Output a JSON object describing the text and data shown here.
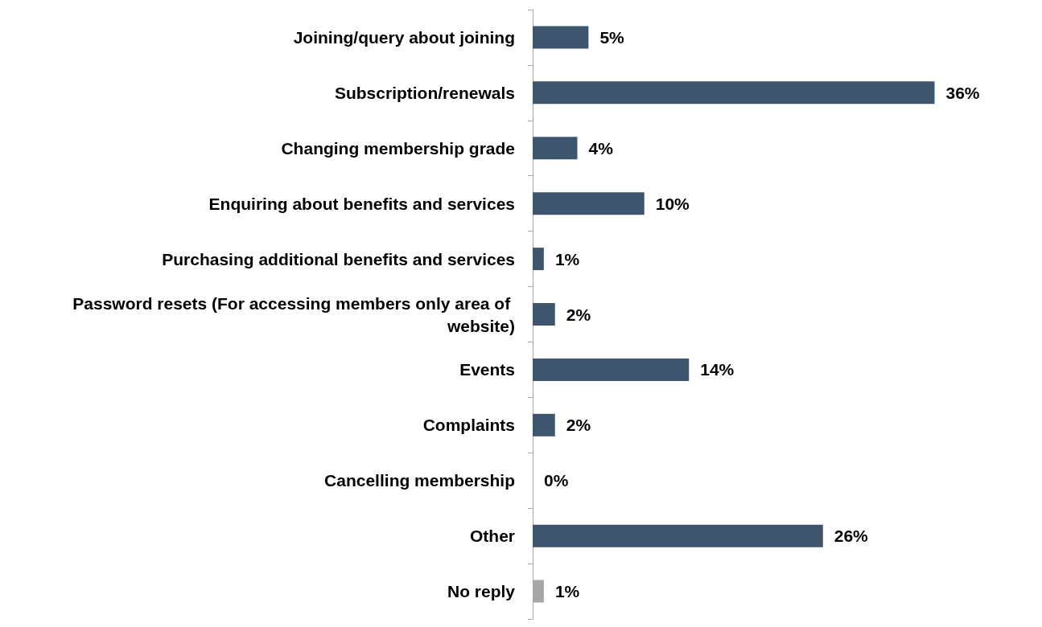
{
  "chart_data": {
    "type": "bar",
    "orientation": "horizontal",
    "categories": [
      "Joining/query about joining",
      "Subscription/renewals",
      "Changing membership grade",
      "Enquiring about benefits and services",
      "Purchasing additional benefits and services",
      "Password resets (For accessing members only area of website)",
      "Events",
      "Complaints",
      "Cancelling membership",
      "Other",
      "No reply"
    ],
    "values": [
      5,
      36,
      4,
      10,
      1,
      2,
      14,
      2,
      0,
      26,
      1
    ],
    "colors": [
      "#3d566e",
      "#3d566e",
      "#3d566e",
      "#3d566e",
      "#3d566e",
      "#3d566e",
      "#3d566e",
      "#3d566e",
      "#3d566e",
      "#3d566e",
      "#a6a6a6"
    ],
    "value_labels": [
      "5%",
      "36%",
      "4%",
      "10%",
      "1%",
      "2%",
      "14%",
      "2%",
      "0%",
      "26%",
      "1%"
    ],
    "grid": false
  }
}
